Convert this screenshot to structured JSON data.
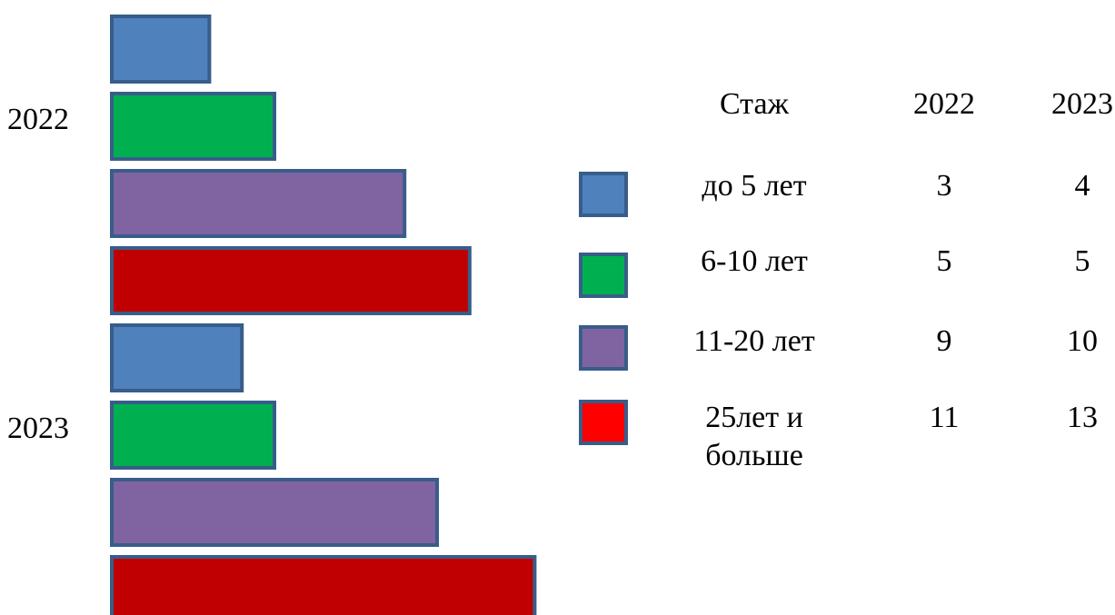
{
  "chart_data": {
    "type": "bar",
    "orientation": "horizontal",
    "groups": [
      "2022",
      "2023"
    ],
    "categories": [
      "до 5 лет",
      "6-10 лет",
      "11-20 лет",
      "25лет и больше"
    ],
    "series": [
      {
        "group": "2022",
        "values": [
          3,
          5,
          9,
          11
        ]
      },
      {
        "group": "2023",
        "values": [
          4,
          5,
          10,
          13
        ]
      }
    ],
    "colors": [
      "#4F81BD",
      "#00B050",
      "#8064A2",
      "#C00000"
    ],
    "legend_colors": [
      "#4F81BD",
      "#00B050",
      "#8064A2",
      "#FF0000"
    ],
    "border_color": "#385D8A",
    "grid": false,
    "legend_position": "right",
    "table": {
      "header": [
        "Стаж",
        "2022",
        "2023"
      ],
      "rows": [
        {
          "label_lines": [
            "до 5 лет"
          ],
          "v2022": "3",
          "v2023": "4"
        },
        {
          "label_lines": [
            "6-10 лет"
          ],
          "v2022": "5",
          "v2023": "5"
        },
        {
          "label_lines": [
            "11-20 лет"
          ],
          "v2022": "9",
          "v2023": "10"
        },
        {
          "label_lines": [
            "25лет и",
            "больше"
          ],
          "v2022": "11",
          "v2023": "13"
        }
      ]
    }
  }
}
